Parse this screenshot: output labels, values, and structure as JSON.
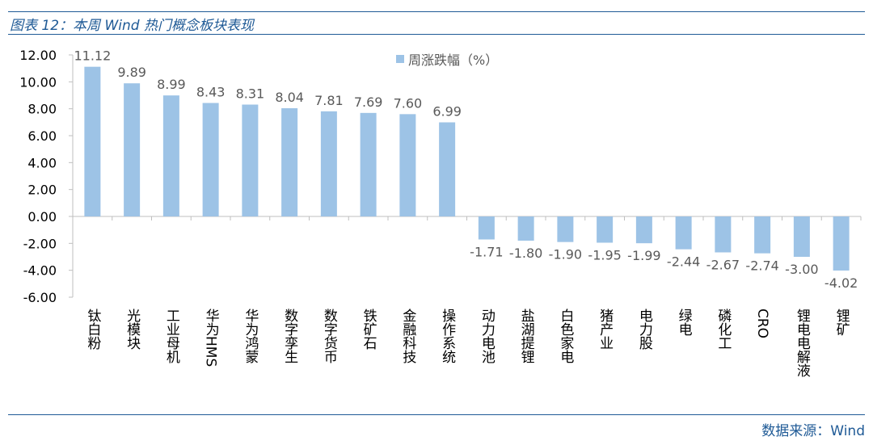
{
  "title": "图表 12：本周 Wind 热门概念板块表现",
  "source": "数据来源：Wind",
  "chart_data": {
    "type": "bar",
    "categories": [
      "钛白粉",
      "光模块",
      "工业母机",
      "华为HMS",
      "华为鸿蒙",
      "数字孪生",
      "数字货币",
      "铁矿石",
      "金融科技",
      "操作系统",
      "动力电池",
      "盐湖提锂",
      "白色家电",
      "猪产业",
      "电力股",
      "绿电",
      "磷化工",
      "CRO",
      "锂电电解液",
      "锂矿"
    ],
    "series": [
      {
        "name": "周涨跌幅（%）",
        "values": [
          11.12,
          9.89,
          8.99,
          8.43,
          8.31,
          8.04,
          7.81,
          7.69,
          7.6,
          6.99,
          -1.71,
          -1.8,
          -1.9,
          -1.95,
          -1.99,
          -2.44,
          -2.67,
          -2.74,
          -3.0,
          -4.02
        ]
      }
    ],
    "value_labels": [
      "11.12",
      "9.89",
      "8.99",
      "8.43",
      "8.31",
      "8.04",
      "7.81",
      "7.69",
      "7.60",
      "6.99",
      "-1.71",
      "-1.80",
      "-1.90",
      "-1.95",
      "-1.99",
      "-2.44",
      "-2.67",
      "-2.74",
      "-3.00",
      "-4.02"
    ],
    "ylim": [
      -6,
      12
    ],
    "yticks": [
      "12.00",
      "10.00",
      "8.00",
      "6.00",
      "4.00",
      "2.00",
      "0.00",
      "-2.00",
      "-4.00",
      "-6.00"
    ],
    "xlabel": "",
    "ylabel": "",
    "legend_position": "top-center",
    "grid": false,
    "bar_color": "#9dc3e6",
    "axis_color": "#bfbfbf",
    "text_color": "#595959"
  }
}
